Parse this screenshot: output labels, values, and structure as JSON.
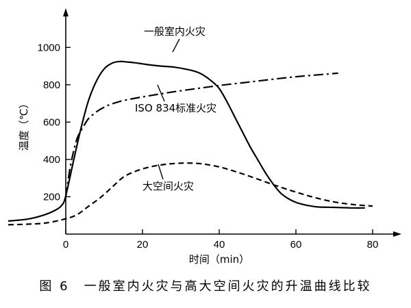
{
  "chart_data": {
    "type": "line",
    "xlabel": "时间（min）",
    "ylabel": "温度（℃）",
    "xlim": [
      -16,
      83
    ],
    "ylim": [
      0,
      1080
    ],
    "xticks": [
      0,
      20,
      40,
      60,
      80
    ],
    "yticks": [
      200,
      400,
      600,
      800,
      1000
    ],
    "grid": false,
    "legend": "none",
    "series": [
      {
        "name": "一般室内火灾",
        "style": "solid",
        "x": [
          -15,
          -10,
          -6,
          -3,
          -1,
          0,
          2,
          4,
          6,
          8,
          10,
          12,
          14,
          16,
          18,
          20,
          22,
          25,
          28,
          31,
          34,
          36,
          38,
          40,
          42,
          44,
          46,
          48,
          50,
          52,
          54,
          56,
          58,
          60,
          62,
          64,
          66,
          70,
          75,
          78
        ],
        "y": [
          70,
          80,
          100,
          125,
          155,
          205,
          390,
          570,
          720,
          820,
          885,
          915,
          925,
          922,
          918,
          912,
          906,
          900,
          895,
          885,
          870,
          850,
          820,
          780,
          710,
          630,
          550,
          470,
          400,
          330,
          270,
          220,
          190,
          170,
          158,
          150,
          145,
          143,
          140,
          140
        ]
      },
      {
        "name": "ISO 834标准火灾",
        "style": "dashdot",
        "x": [
          0,
          1,
          2,
          3,
          4,
          5,
          6,
          8,
          10,
          12,
          15,
          20,
          25,
          30,
          35,
          40,
          45,
          50,
          55,
          60,
          65,
          71
        ],
        "y": [
          200,
          340,
          440,
          515,
          555,
          590,
          620,
          655,
          680,
          697,
          715,
          735,
          752,
          768,
          782,
          796,
          808,
          820,
          832,
          843,
          852,
          862
        ]
      },
      {
        "name": "大空间火灾",
        "style": "dashed",
        "x": [
          -15,
          -10,
          -5,
          0,
          3,
          6,
          9,
          12,
          15,
          18,
          21,
          24,
          27,
          30,
          33,
          36,
          40,
          45,
          50,
          55,
          60,
          65,
          70,
          75,
          80
        ],
        "y": [
          50,
          53,
          60,
          82,
          105,
          150,
          195,
          250,
          305,
          335,
          355,
          368,
          376,
          380,
          380,
          375,
          360,
          330,
          295,
          258,
          225,
          195,
          172,
          158,
          150
        ]
      }
    ],
    "annotations": [
      {
        "text": "一般室内火灾",
        "series": 0
      },
      {
        "text": "ISO 834标准火灾",
        "series": 1
      },
      {
        "text": "大空间火灾",
        "series": 2
      }
    ],
    "caption": "图 6　一般室内火灾与高大空间火灾的升温曲线比较"
  }
}
